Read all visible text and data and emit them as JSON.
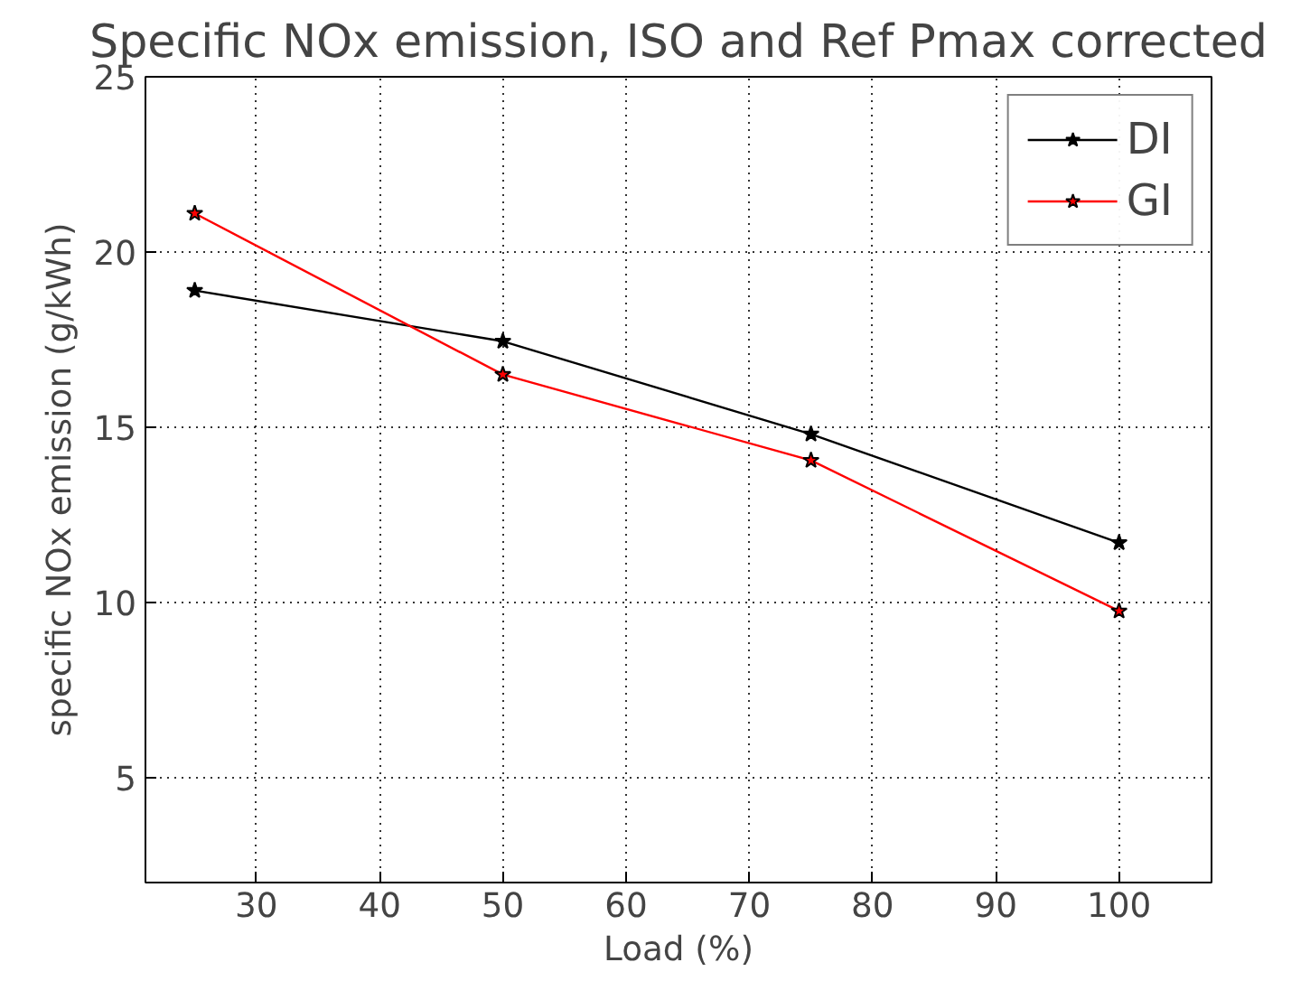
{
  "chart_data": {
    "type": "line",
    "title": "Specific NOx emission, ISO and Ref Pmax corrected",
    "xlabel": "Load (%)",
    "ylabel": "specific NOx emission (g/kWh)",
    "x": [
      25,
      50,
      75,
      100
    ],
    "series": [
      {
        "name": "DI",
        "color": "#000000",
        "values": [
          18.9,
          17.45,
          14.8,
          11.7
        ]
      },
      {
        "name": "GI",
        "color": "#ff0000",
        "values": [
          21.1,
          16.5,
          14.05,
          9.75
        ]
      }
    ],
    "xlim": [
      21,
      107.5
    ],
    "xticks": [
      30,
      40,
      50,
      60,
      70,
      80,
      90,
      100
    ],
    "ylim": [
      2,
      25
    ],
    "yticks": [
      5,
      10,
      15,
      20,
      25
    ],
    "grid": true,
    "legend": "top right",
    "marker": "star",
    "line_style": "solid"
  }
}
